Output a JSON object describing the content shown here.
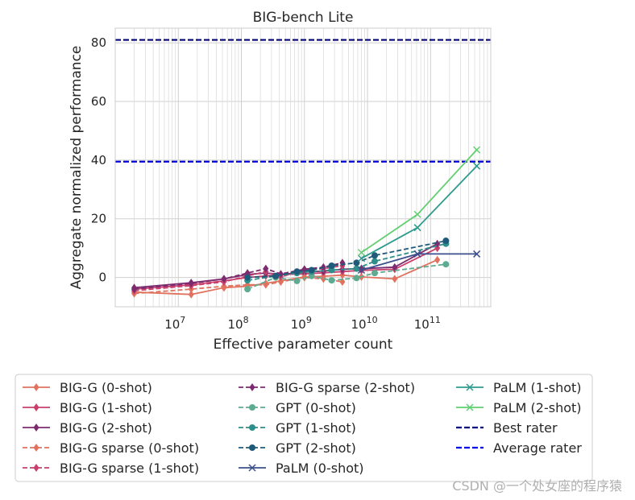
{
  "chart_data": {
    "type": "line",
    "title": "BIG-bench Lite",
    "xlabel": "Effective parameter count",
    "ylabel": "Aggregate normalized performance",
    "xscale": "log",
    "xlim": [
      1000000,
      900000000000
    ],
    "ylim": [
      -10,
      85
    ],
    "yticks": [
      0,
      20,
      40,
      60,
      80
    ],
    "xticks": [
      {
        "value": 10000000,
        "label_base": "10",
        "label_exp": "7"
      },
      {
        "value": 100000000,
        "label_base": "10",
        "label_exp": "8"
      },
      {
        "value": 1000000000,
        "label_base": "10",
        "label_exp": "9"
      },
      {
        "value": 10000000000,
        "label_base": "10",
        "label_exp": "10"
      },
      {
        "value": 100000000000,
        "label_base": "10",
        "label_exp": "11"
      }
    ],
    "grid": true,
    "legend_position": "below",
    "series": [
      {
        "name": "BIG-G (0-shot)",
        "color": "#e0725e",
        "dash": "solid",
        "marker": "diamond",
        "x": [
          2000000,
          16000000,
          53000000,
          125000000,
          244000000,
          422000000,
          1000000000,
          2000000000,
          4000000000,
          8000000000,
          27000000000,
          128000000000
        ],
        "y": [
          -5,
          -5.8,
          -3.5,
          -3,
          -2,
          -1.2,
          0.2,
          0.4,
          0.8,
          0.2,
          -0.5,
          6
        ]
      },
      {
        "name": "BIG-G (1-shot)",
        "color": "#c8406b",
        "dash": "solid",
        "marker": "diamond",
        "x": [
          2000000,
          16000000,
          53000000,
          125000000,
          244000000,
          422000000,
          1000000000,
          2000000000,
          4000000000,
          8000000000,
          27000000000,
          128000000000
        ],
        "y": [
          -4,
          -2.5,
          -1.2,
          0,
          0.5,
          1,
          1.2,
          1.6,
          2,
          2.4,
          2.8,
          10
        ]
      },
      {
        "name": "BIG-G (2-shot)",
        "color": "#7d2b6f",
        "dash": "solid",
        "marker": "diamond",
        "x": [
          2000000,
          16000000,
          53000000,
          125000000,
          244000000,
          422000000,
          1000000000,
          2000000000,
          4000000000,
          8000000000,
          27000000000,
          128000000000
        ],
        "y": [
          -3.5,
          -1.8,
          -0.5,
          1,
          1.5,
          1,
          1.8,
          2.2,
          2.8,
          3,
          3.5,
          11.5
        ]
      },
      {
        "name": "BIG-G sparse (0-shot)",
        "color": "#e0725e",
        "dash": "dashed",
        "marker": "diamond",
        "x": [
          2000000,
          16000000,
          53000000,
          125000000,
          244000000,
          422000000,
          1000000000,
          2000000000,
          4000000000
        ],
        "y": [
          -5.5,
          -4,
          -3,
          -2.5,
          -2.5,
          -1.5,
          0,
          -0.5,
          -1.5
        ]
      },
      {
        "name": "BIG-G sparse (1-shot)",
        "color": "#c8406b",
        "dash": "dashed",
        "marker": "diamond",
        "x": [
          2000000,
          16000000,
          53000000,
          125000000,
          244000000,
          422000000,
          1000000000,
          2000000000,
          4000000000
        ],
        "y": [
          -4.5,
          -2.8,
          -1.5,
          0.5,
          2,
          0.2,
          2.5,
          3,
          4
        ]
      },
      {
        "name": "BIG-G sparse (2-shot)",
        "color": "#7d2b6f",
        "dash": "dashed",
        "marker": "diamond",
        "x": [
          2000000,
          16000000,
          53000000,
          125000000,
          244000000,
          422000000,
          1000000000,
          2000000000,
          4000000000
        ],
        "y": [
          -4,
          -2,
          -0.5,
          1.5,
          3,
          1.2,
          2.8,
          3.5,
          5
        ]
      },
      {
        "name": "GPT (0-shot)",
        "color": "#5eab91",
        "dash": "dashed",
        "marker": "circle",
        "x": [
          125000000,
          350000000,
          760000000,
          1300000000,
          2700000000,
          6700000000,
          13000000000,
          175000000000
        ],
        "y": [
          -4,
          0,
          -1.2,
          0.5,
          -1,
          -0.2,
          1.5,
          4.5
        ]
      },
      {
        "name": "GPT (1-shot)",
        "color": "#2e8f8a",
        "dash": "dashed",
        "marker": "circle",
        "x": [
          125000000,
          350000000,
          760000000,
          1300000000,
          2700000000,
          6700000000,
          13000000000,
          175000000000
        ],
        "y": [
          -1,
          0.5,
          1.5,
          2,
          2.5,
          3,
          5.5,
          11.5
        ]
      },
      {
        "name": "GPT (2-shot)",
        "color": "#1f5a7a",
        "dash": "dashed",
        "marker": "circle",
        "x": [
          125000000,
          350000000,
          760000000,
          1300000000,
          2700000000,
          6700000000,
          13000000000,
          175000000000
        ],
        "y": [
          0,
          0.5,
          2,
          2.5,
          4,
          5,
          7.5,
          12.5
        ]
      },
      {
        "name": "PaLM (0-shot)",
        "color": "#3b4f8c",
        "dash": "solid",
        "marker": "x",
        "x": [
          8000000000,
          62000000000,
          540000000000
        ],
        "y": [
          2.5,
          8,
          8
        ]
      },
      {
        "name": "PaLM (1-shot)",
        "color": "#2e9b8e",
        "dash": "solid",
        "marker": "x",
        "x": [
          8000000000,
          62000000000,
          540000000000
        ],
        "y": [
          6.5,
          17,
          38
        ]
      },
      {
        "name": "PaLM (2-shot)",
        "color": "#63cf72",
        "dash": "solid",
        "marker": "x",
        "x": [
          8000000000,
          62000000000,
          540000000000
        ],
        "y": [
          8.5,
          21.5,
          43.5
        ]
      }
    ],
    "reference_lines": [
      {
        "name": "Best rater",
        "color": "#00007a",
        "dash": "dashed",
        "y": 81
      },
      {
        "name": "Average rater",
        "color": "#0000e0",
        "dash": "dashed",
        "y": 39.5
      }
    ],
    "legend_columns": [
      [
        "BIG-G (0-shot)",
        "BIG-G (1-shot)",
        "BIG-G (2-shot)",
        "BIG-G sparse (0-shot)",
        "BIG-G sparse (1-shot)"
      ],
      [
        "BIG-G sparse (2-shot)",
        "GPT (0-shot)",
        "GPT (1-shot)",
        "GPT (2-shot)",
        "PaLM (0-shot)"
      ],
      [
        "PaLM (1-shot)",
        "PaLM (2-shot)",
        "Best rater",
        "Average rater"
      ]
    ]
  },
  "watermark": "CSDN @一个处女座的程序猿"
}
